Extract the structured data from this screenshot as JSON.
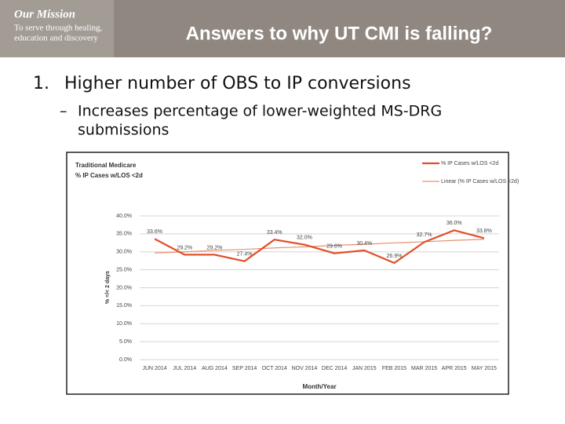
{
  "header": {
    "mission_title": "Our Mission",
    "mission_lines": [
      "To serve through healing,",
      "education and discovery"
    ],
    "title": "Answers to why UT CMI is falling?"
  },
  "bullets": [
    {
      "number": "1.",
      "text": "Higher number of OBS to IP conversions",
      "sub": [
        {
          "dash": "–",
          "lines": [
            "Increases percentage of lower-weighted MS-DRG",
            "submissions"
          ]
        }
      ]
    }
  ],
  "chart_data": {
    "type": "line",
    "title": "Traditional Medicare",
    "subtitle": "% IP Cases w/LOS <2d",
    "x_label": "Month/Year",
    "y_label": "% =/< 2 days",
    "categories": [
      "JUN 2014",
      "JUL 2014",
      "AUG 2014",
      "SEP 2014",
      "OCT 2014",
      "NOV 2014",
      "DEC 2014",
      "JAN 2015",
      "FEB 2015",
      "MAR 2015",
      "APR 2015",
      "MAY 2015"
    ],
    "series": [
      {
        "name": "% IP Cases w/LOS <2d",
        "color": "#e0502a",
        "values": [
          33.6,
          29.2,
          29.2,
          27.4,
          33.4,
          32.0,
          29.6,
          30.4,
          26.9,
          32.7,
          36.0,
          33.8
        ],
        "value_labels": [
          "33.6%",
          "29.2%",
          "29.2%",
          "27.4%",
          "33.4%",
          "32.0%",
          "29.6%",
          "30.4%",
          "26.9%",
          "32.7%",
          "36.0%",
          "33.8%"
        ]
      },
      {
        "name": "Linear (% IP Cases w/LOS <2d)",
        "color": "#e89070",
        "values": [
          29.7,
          30.0,
          30.4,
          30.7,
          31.1,
          31.4,
          31.8,
          32.1,
          32.5,
          32.8,
          33.2,
          33.5
        ]
      }
    ],
    "ylim": [
      0,
      40
    ],
    "yticks": [
      {
        "value": 0,
        "label": "0.0%"
      },
      {
        "value": 5,
        "label": "5.0%"
      },
      {
        "value": 10,
        "label": "10.0%"
      },
      {
        "value": 15,
        "label": "15.0%"
      },
      {
        "value": 20,
        "label": "20.0%"
      },
      {
        "value": 25,
        "label": "25.0%"
      },
      {
        "value": 30,
        "label": "30.0%"
      },
      {
        "value": 35,
        "label": "35.0%"
      },
      {
        "value": 40,
        "label": "40.0%"
      }
    ],
    "grid": true,
    "legend": "top-right"
  }
}
